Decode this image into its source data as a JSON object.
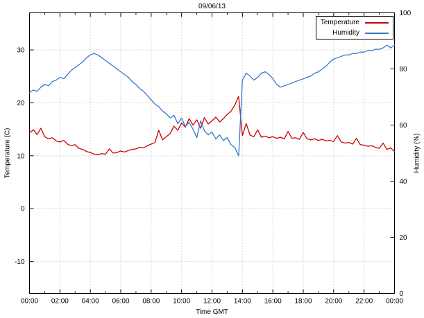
{
  "chart_data": {
    "type": "line",
    "title": "09/06/13",
    "xlabel": "Time GMT",
    "ylabel_left": "Temperature (C)",
    "ylabel_right": "Humidity (%)",
    "xlim": [
      0,
      24
    ],
    "x_major_ticks": [
      0,
      2,
      4,
      6,
      8,
      10,
      12,
      14,
      16,
      18,
      20,
      22,
      24
    ],
    "x_tick_labels": [
      "00:00",
      "02:00",
      "04:00",
      "06:00",
      "08:00",
      "10:00",
      "12:00",
      "14:00",
      "16:00",
      "18:00",
      "20:00",
      "22:00",
      "00:00"
    ],
    "x_minor_step": 1,
    "ylim_left": [
      -16,
      37
    ],
    "y_left_ticks": [
      30,
      20,
      10,
      0,
      -10
    ],
    "ylim_right": [
      0,
      100
    ],
    "y_right_ticks": [
      100,
      80,
      60,
      40,
      20,
      0
    ],
    "grid": true,
    "background": "#ffffff",
    "legend": {
      "position": "top-right",
      "entries": [
        {
          "label": "Temperature",
          "color": "#cc0000"
        },
        {
          "label": "Humidity",
          "color": "#3377cc"
        }
      ]
    },
    "series": [
      {
        "name": "Temperature",
        "axis": "left",
        "color": "#cc0000",
        "x_start": 0,
        "x_step": 0.25,
        "values": [
          14.3,
          14.9,
          14.0,
          15.2,
          13.6,
          13.2,
          13.4,
          12.8,
          12.6,
          12.9,
          12.2,
          11.9,
          12.1,
          11.4,
          11.2,
          10.8,
          10.6,
          10.3,
          10.2,
          10.4,
          10.3,
          11.3,
          10.5,
          10.6,
          10.9,
          10.7,
          11.0,
          11.2,
          11.3,
          11.6,
          11.5,
          11.9,
          12.2,
          12.5,
          14.8,
          13.0,
          13.6,
          14.2,
          15.6,
          14.8,
          16.2,
          15.4,
          17.0,
          15.8,
          16.8,
          15.2,
          17.2,
          16.0,
          16.6,
          17.3,
          16.4,
          17.0,
          17.8,
          18.4,
          19.6,
          21.2,
          13.8,
          16.1,
          13.9,
          13.6,
          14.9,
          13.5,
          13.7,
          13.4,
          13.6,
          13.3,
          13.5,
          13.2,
          14.6,
          13.3,
          13.4,
          13.1,
          14.4,
          13.2,
          13.0,
          13.2,
          12.9,
          13.1,
          12.8,
          12.9,
          12.7,
          13.8,
          12.6,
          12.4,
          12.5,
          12.2,
          13.3,
          12.1,
          12.0,
          11.8,
          11.9,
          11.6,
          11.4,
          12.4,
          11.2,
          11.5,
          10.8
        ]
      },
      {
        "name": "Humidity",
        "axis": "right",
        "color": "#3377cc",
        "x_start": 0,
        "x_step": 0.25,
        "values": [
          71.5,
          72.5,
          72.0,
          73.5,
          74.5,
          74.0,
          75.5,
          76.0,
          77.0,
          76.5,
          78.0,
          79.5,
          80.5,
          81.5,
          82.5,
          84.0,
          85.0,
          85.5,
          85.0,
          84.0,
          83.0,
          82.0,
          81.0,
          80.0,
          79.0,
          78.0,
          77.0,
          75.5,
          74.5,
          73.0,
          72.0,
          70.5,
          69.0,
          67.5,
          66.5,
          65.0,
          64.0,
          62.5,
          63.5,
          60.5,
          62.5,
          59.5,
          61.0,
          58.5,
          55.5,
          61.5,
          58.0,
          56.5,
          57.5,
          55.0,
          56.5,
          54.5,
          55.5,
          53.0,
          52.0,
          49.0,
          76.0,
          78.5,
          77.5,
          76.0,
          77.0,
          78.5,
          79.0,
          78.0,
          76.5,
          74.5,
          73.5,
          74.0,
          74.5,
          75.0,
          75.5,
          76.0,
          76.5,
          77.0,
          77.5,
          78.5,
          79.0,
          80.0,
          81.0,
          82.5,
          83.5,
          84.0,
          84.5,
          85.0,
          85.0,
          85.5,
          85.5,
          86.0,
          86.0,
          86.5,
          86.5,
          87.0,
          87.0,
          87.5,
          88.5,
          87.5,
          88.5
        ]
      }
    ]
  }
}
